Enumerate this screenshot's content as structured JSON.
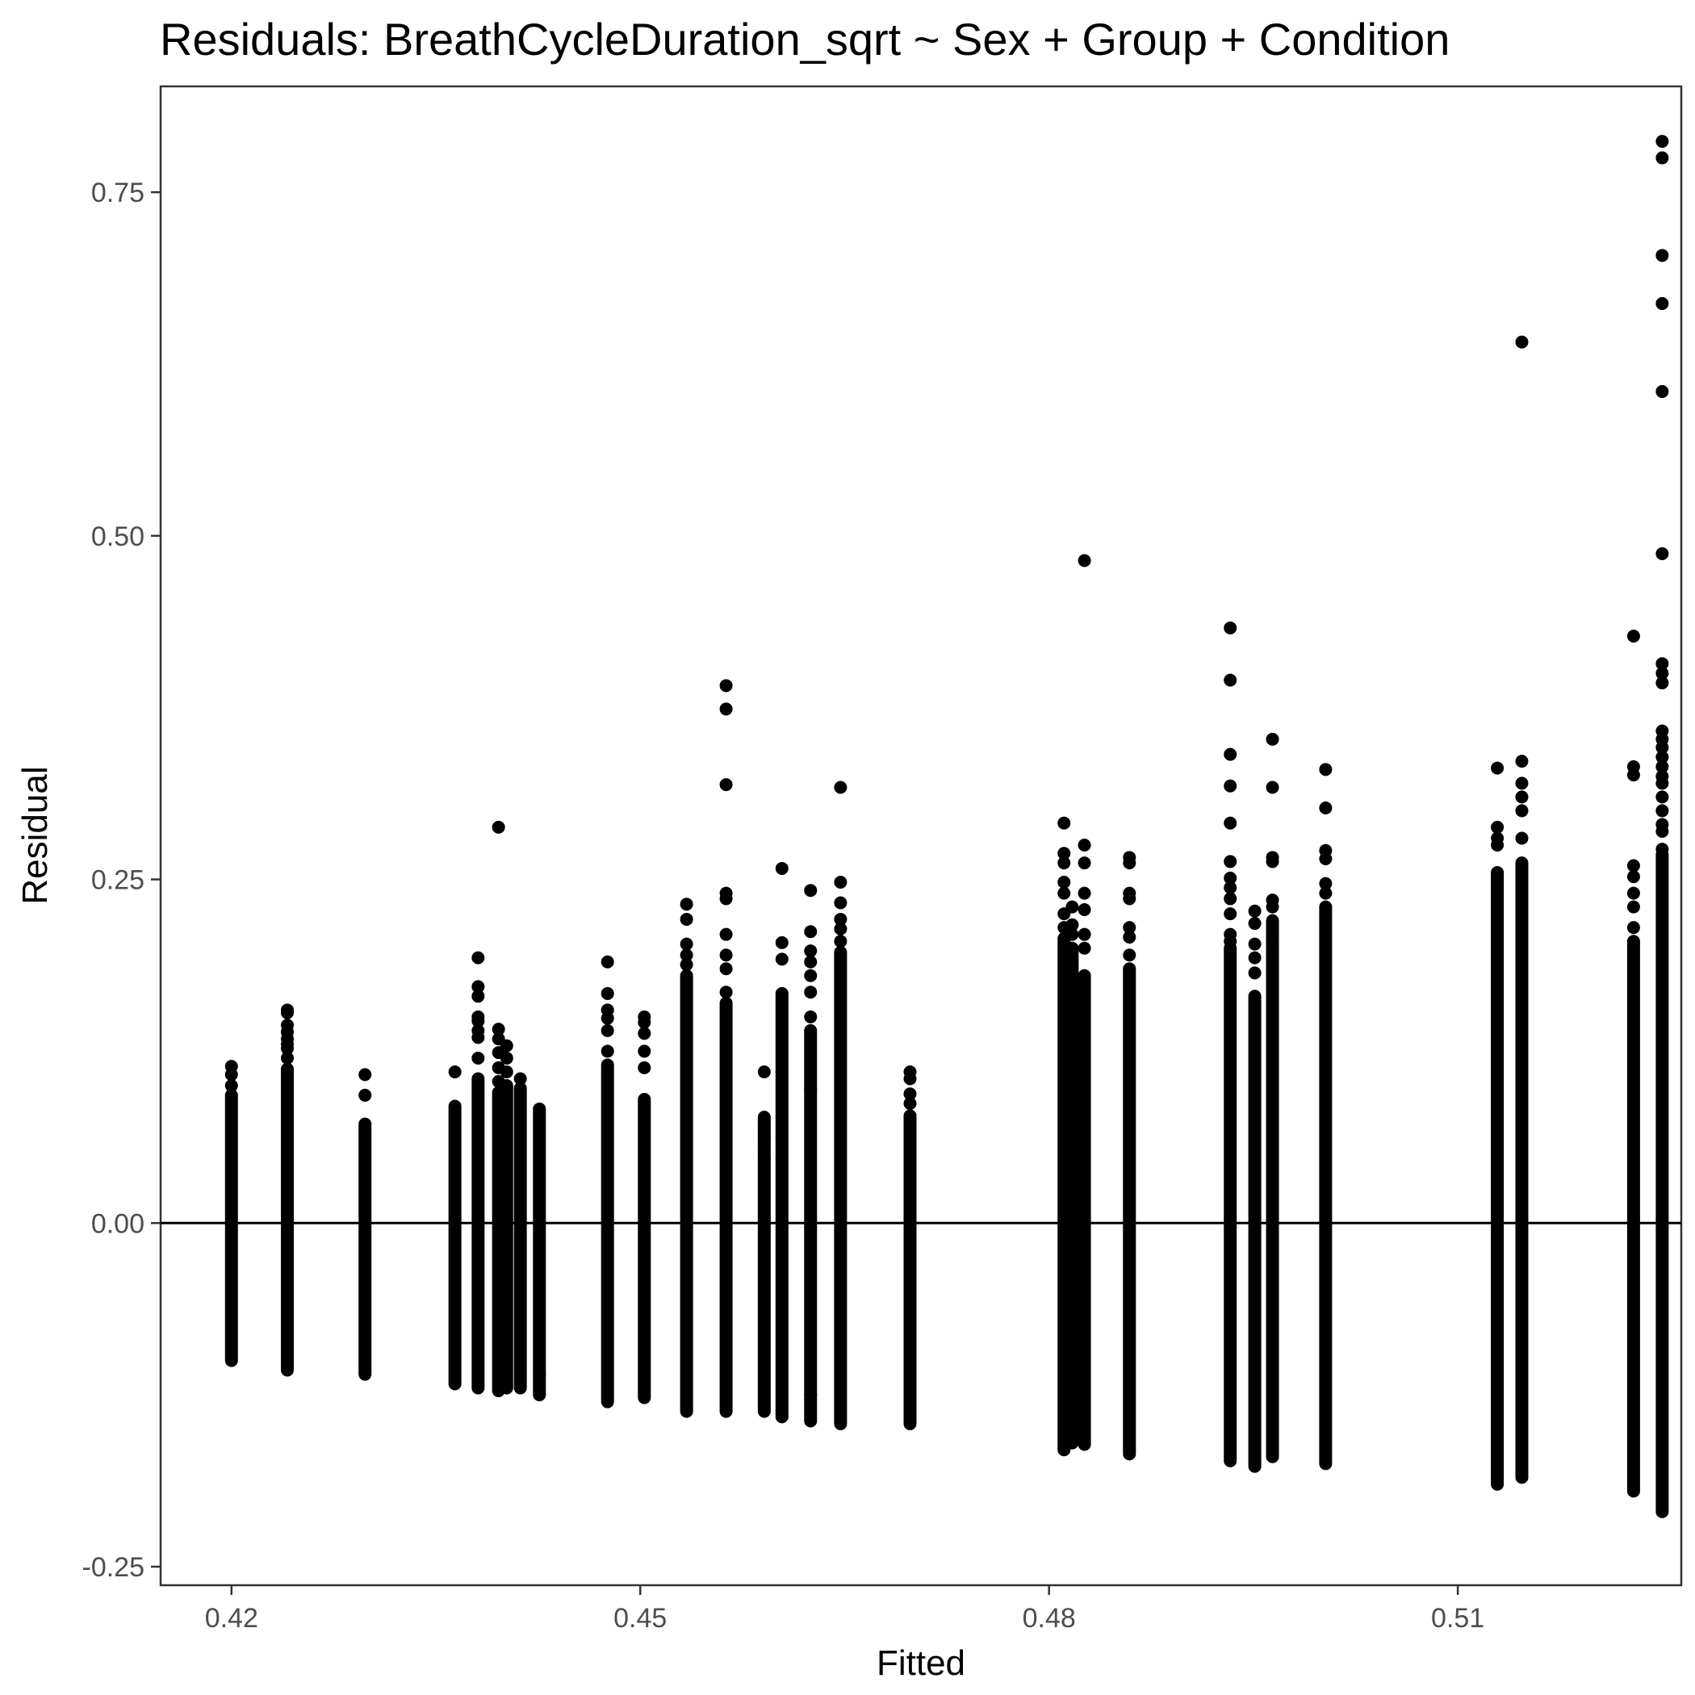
{
  "chart_data": {
    "type": "scatter",
    "title": "Residuals: BreathCycleDuration_sqrt ~ Sex + Group + Condition",
    "xlabel": "Fitted",
    "ylabel": "Residual",
    "xlim": [
      0.4148,
      0.5264
    ],
    "ylim": [
      -0.2635,
      0.827
    ],
    "x_ticks": [
      0.42,
      0.45,
      0.48,
      0.51
    ],
    "x_tick_labels": [
      "0.42",
      "0.45",
      "0.48",
      "0.51"
    ],
    "y_ticks": [
      -0.25,
      0.0,
      0.25,
      0.5,
      0.75
    ],
    "y_tick_labels": [
      "-0.25",
      "0.00",
      "0.25",
      "0.50",
      "0.75"
    ],
    "reference_line_y": 0,
    "grid": false,
    "point_color": "#000000",
    "columns": [
      {
        "x": 0.42,
        "run": [
          -0.1,
          0.093
        ],
        "points": [
          0.1,
          0.108,
          0.114
        ]
      },
      {
        "x": 0.4241,
        "run": [
          -0.107,
          0.112
        ],
        "points": [
          0.12,
          0.127,
          0.13,
          0.134,
          0.139,
          0.144,
          0.153,
          0.155
        ]
      },
      {
        "x": 0.4298,
        "run": [
          -0.11,
          0.072
        ],
        "points": [
          0.093,
          0.108
        ]
      },
      {
        "x": 0.4364,
        "run": [
          -0.117,
          0.085
        ],
        "points": [
          0.11
        ]
      },
      {
        "x": 0.4381,
        "run": [
          -0.12,
          0.105
        ],
        "points": [
          0.12,
          0.135,
          0.14,
          0.147,
          0.15,
          0.165,
          0.172,
          0.193
        ]
      },
      {
        "x": 0.4396,
        "run": [
          -0.122,
          0.095
        ],
        "points": [
          0.103,
          0.113,
          0.124,
          0.134,
          0.141,
          0.288
        ]
      },
      {
        "x": 0.4402,
        "run": [
          -0.12,
          0.1
        ],
        "points": [
          0.11,
          0.12,
          0.129
        ]
      },
      {
        "x": 0.4412,
        "run": [
          -0.12,
          0.098
        ],
        "points": [
          0.105
        ]
      },
      {
        "x": 0.4426,
        "run": [
          -0.125,
          0.083
        ],
        "points": [
          -0.11
        ]
      },
      {
        "x": 0.4476,
        "run": [
          -0.13,
          0.115
        ],
        "points": [
          0.125,
          0.14,
          0.149,
          0.155,
          0.167,
          0.19
        ]
      },
      {
        "x": 0.4503,
        "run": [
          -0.127,
          0.09
        ],
        "points": [
          0.113,
          0.125,
          0.138,
          0.146,
          0.15
        ]
      },
      {
        "x": 0.4534,
        "run": [
          -0.137,
          0.18
        ],
        "points": [
          0.188,
          0.195,
          0.203,
          0.221,
          0.232
        ]
      },
      {
        "x": 0.4563,
        "run": [
          -0.137,
          0.16
        ],
        "points": [
          0.168,
          0.185,
          0.195,
          0.21,
          0.236,
          0.24,
          0.319,
          0.374,
          0.391
        ]
      },
      {
        "x": 0.4591,
        "run": [
          -0.137,
          0.077
        ],
        "points": [
          0.047,
          0.063,
          0.11
        ]
      },
      {
        "x": 0.4604,
        "run": [
          -0.141,
          0.167
        ],
        "points": [
          0.192,
          0.204,
          0.258
        ]
      },
      {
        "x": 0.4625,
        "run": [
          -0.144,
          0.14
        ],
        "points": [
          -0.125,
          0.097,
          0.15,
          0.168,
          0.18,
          0.19,
          0.198,
          0.212,
          0.242
        ]
      },
      {
        "x": 0.4647,
        "run": [
          -0.146,
          0.197
        ],
        "points": [
          0.205,
          0.214,
          0.221,
          0.233,
          0.248,
          0.317
        ]
      },
      {
        "x": 0.4698,
        "run": [
          -0.146,
          0.078
        ],
        "points": [
          -0.14,
          -0.131,
          -0.121,
          0.087,
          0.094,
          0.105,
          0.11
        ]
      },
      {
        "x": 0.4811,
        "run": [
          -0.165,
          0.207
        ],
        "points": [
          0.215,
          0.225,
          0.24,
          0.248,
          0.262,
          0.269,
          0.291
        ]
      },
      {
        "x": 0.4817,
        "run": [
          -0.16,
          0.2
        ],
        "points": [
          0.21,
          0.217,
          0.23
        ]
      },
      {
        "x": 0.4826,
        "run": [
          -0.161,
          0.18
        ],
        "points": [
          0.2,
          0.21,
          0.228,
          0.24,
          0.262,
          0.275,
          0.482
        ]
      },
      {
        "x": 0.4859,
        "run": [
          -0.168,
          0.185
        ],
        "points": [
          0.195,
          0.208,
          0.215,
          0.236,
          0.24,
          0.262,
          0.266
        ]
      },
      {
        "x": 0.4933,
        "run": [
          -0.173,
          0.2
        ],
        "points": [
          0.205,
          0.21,
          0.225,
          0.236,
          0.244,
          0.251,
          0.263,
          0.291,
          0.318,
          0.341,
          0.395,
          0.433
        ]
      },
      {
        "x": 0.4951,
        "run": [
          -0.177,
          0.165
        ],
        "points": [
          0.182,
          0.193,
          0.203,
          0.218,
          0.227
        ]
      },
      {
        "x": 0.4964,
        "run": [
          -0.17,
          0.22
        ],
        "points": [
          0.185,
          0.195,
          0.204,
          0.23,
          0.235,
          0.263,
          0.266,
          0.317,
          0.352
        ]
      },
      {
        "x": 0.5003,
        "run": [
          -0.175,
          0.23
        ],
        "points": [
          0.24,
          0.247,
          0.265,
          0.271,
          0.302,
          0.33
        ]
      },
      {
        "x": 0.5129,
        "run": [
          -0.19,
          0.255
        ],
        "points": [
          0.275,
          0.28,
          0.288,
          0.331
        ]
      },
      {
        "x": 0.5147,
        "run": [
          -0.185,
          0.262
        ],
        "points": [
          0.28,
          0.3,
          0.31,
          0.32,
          0.336,
          0.641
        ]
      },
      {
        "x": 0.5229,
        "run": [
          -0.195,
          0.205
        ],
        "points": [
          0.215,
          0.23,
          0.24,
          0.252,
          0.26,
          0.326,
          0.332,
          0.427
        ]
      },
      {
        "x": 0.525,
        "run": [
          -0.21,
          0.268
        ],
        "points": [
          0.272,
          0.285,
          0.29,
          0.3,
          0.31,
          0.32,
          0.325,
          0.332,
          0.339,
          0.346,
          0.352,
          0.358,
          0.393,
          0.4,
          0.407,
          0.487,
          0.605,
          0.669,
          0.704,
          0.775,
          0.787
        ]
      }
    ]
  }
}
